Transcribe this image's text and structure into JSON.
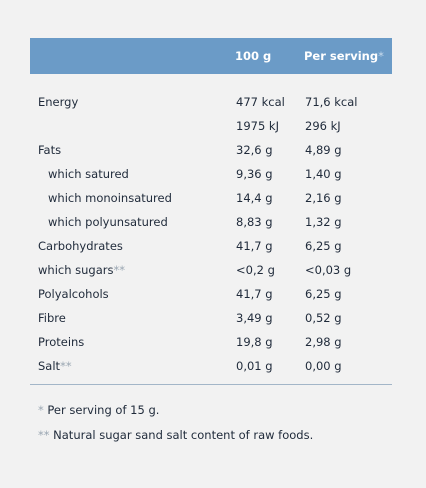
{
  "table": {
    "header": {
      "col1": "100 g",
      "col2": {
        "text": "Per serving",
        "mark": "*"
      }
    },
    "rows": [
      {
        "label": "Energy",
        "col1": [
          "477 kcal",
          "1975 kJ"
        ],
        "col2": [
          "71,6 kcal",
          "296 kJ"
        ]
      },
      {
        "label": "Fats",
        "col1": [
          "32,6 g"
        ],
        "col2": [
          "4,89 g"
        ],
        "sub": [
          {
            "label": "which satured",
            "col1": [
              "9,36 g"
            ],
            "col2": [
              "1,40 g"
            ]
          },
          {
            "label": "which monoinsatured",
            "col1": [
              "14,4 g"
            ],
            "col2": [
              "2,16 g"
            ]
          },
          {
            "label": "which polyunsatured",
            "col1": [
              "8,83 g"
            ],
            "col2": [
              "1,32 g"
            ]
          }
        ]
      },
      {
        "label": "Carbohydrates",
        "col1": [
          "41,7 g"
        ],
        "col2": [
          "6,25 g"
        ]
      },
      {
        "label": "which sugars",
        "mark": "**",
        "col1": [
          "<0,2 g"
        ],
        "col2": [
          "<0,03 g"
        ]
      },
      {
        "label": "Polyalcohols",
        "col1": [
          "41,7 g"
        ],
        "col2": [
          "6,25 g"
        ]
      },
      {
        "label": "Fibre",
        "col1": [
          "3,49 g"
        ],
        "col2": [
          "0,52 g"
        ]
      },
      {
        "label": "Proteins",
        "col1": [
          "19,8 g"
        ],
        "col2": [
          "2,98 g"
        ]
      },
      {
        "label": "Salt",
        "mark": "**",
        "col1": [
          "0,01 g"
        ],
        "col2": [
          "0,00 g"
        ]
      }
    ]
  },
  "footnotes": [
    {
      "mark": "*",
      "text": "Per serving of 15 g."
    },
    {
      "mark": "**",
      "text": "Natural sugar sand salt content of raw foods."
    }
  ]
}
